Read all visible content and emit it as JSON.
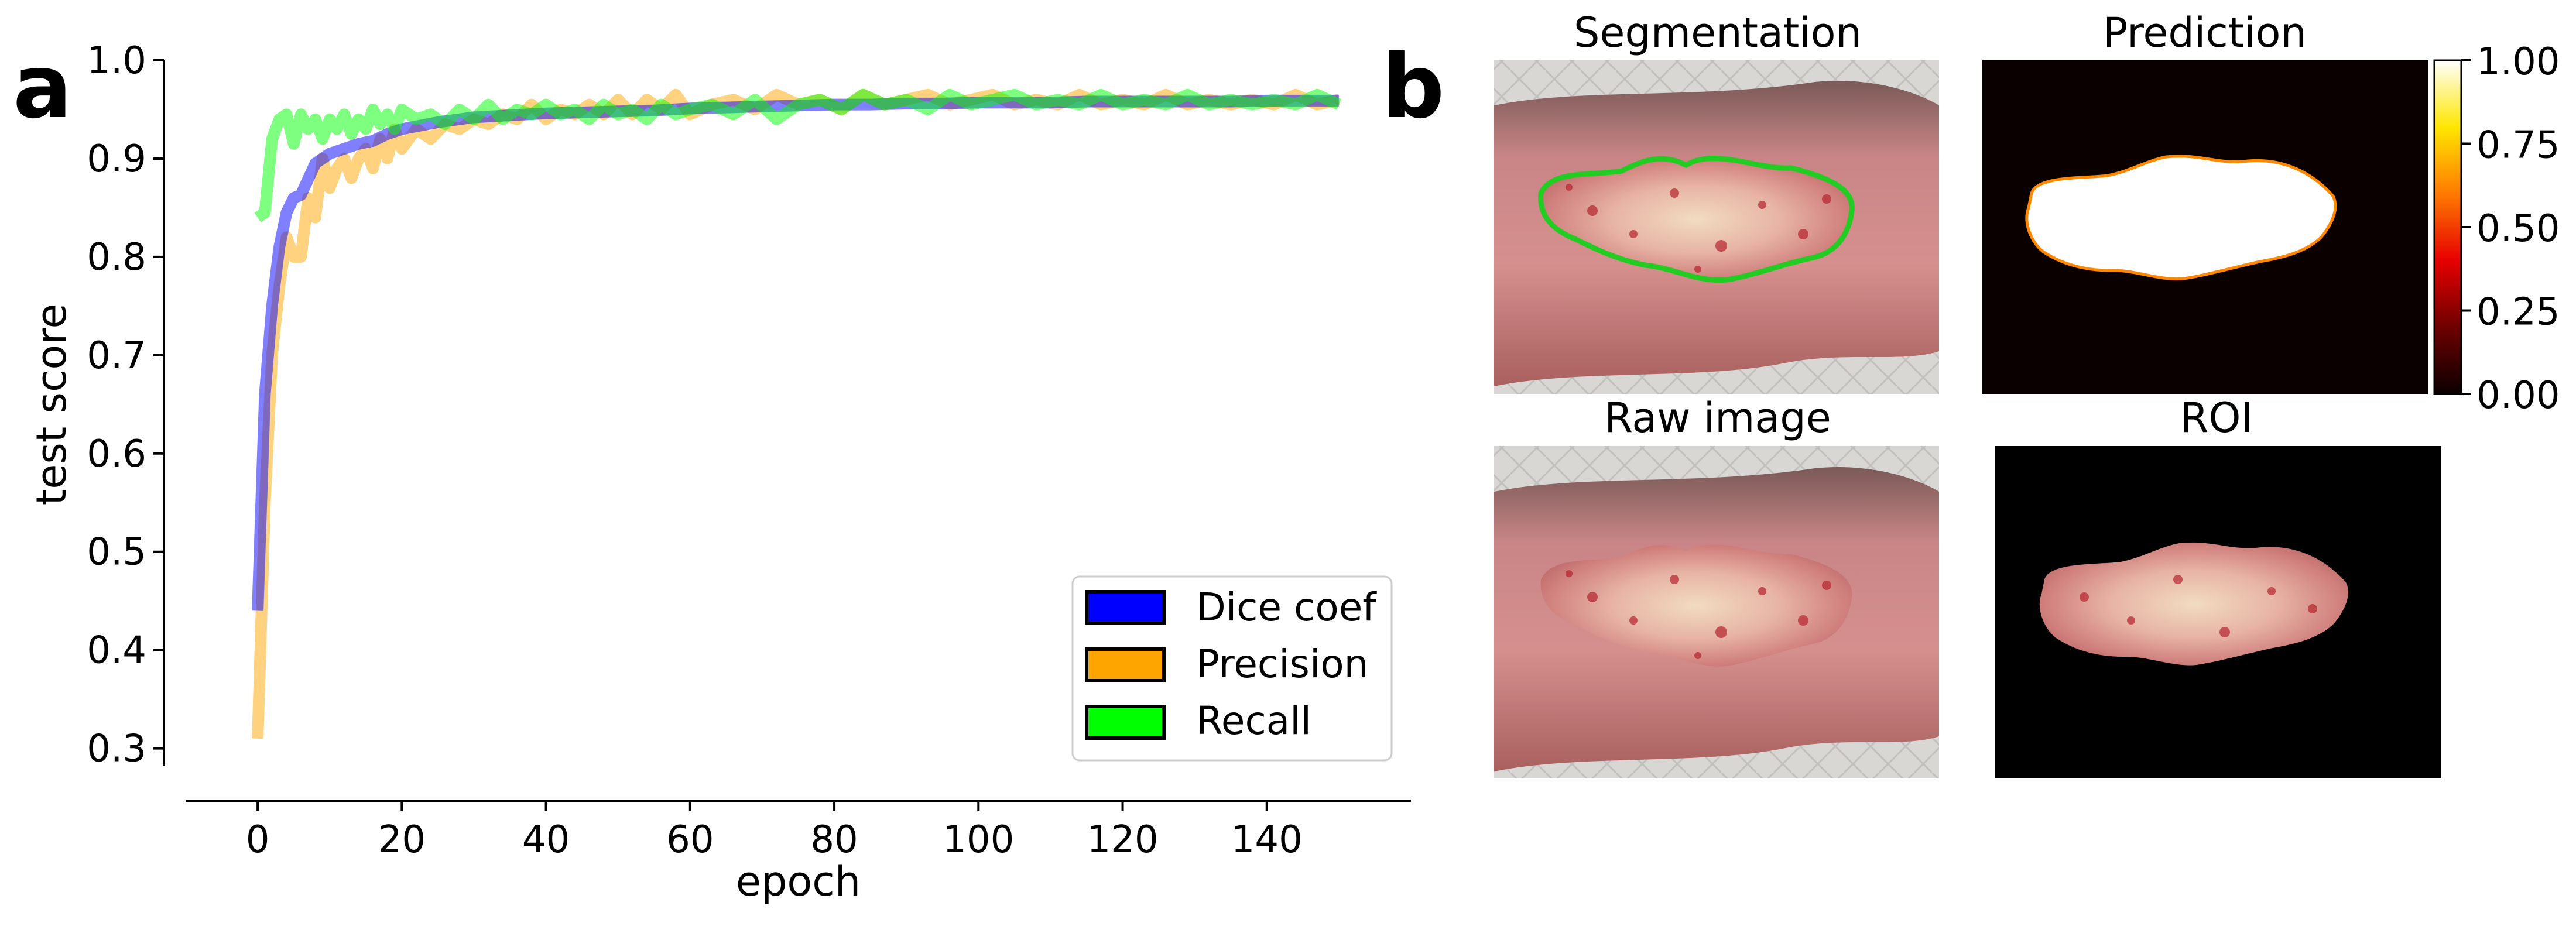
{
  "panels": {
    "a": "a",
    "b": "b"
  },
  "chart_data": {
    "type": "line",
    "title": "",
    "xlabel": "epoch",
    "ylabel": "test score",
    "xlim": [
      -10,
      160
    ],
    "ylim": [
      0.27,
      1.0
    ],
    "xticks": [
      0,
      20,
      40,
      60,
      80,
      100,
      120,
      140
    ],
    "yticks": [
      0.3,
      0.4,
      0.5,
      0.6,
      0.7,
      0.8,
      0.9,
      1.0
    ],
    "grid": false,
    "legend_position": "lower-right",
    "series": [
      {
        "name": "Dice coef",
        "color": "#0000ff",
        "x": [
          0,
          1,
          2,
          3,
          4,
          5,
          6,
          8,
          10,
          12,
          14,
          16,
          18,
          20,
          25,
          30,
          35,
          40,
          45,
          50,
          55,
          60,
          65,
          70,
          75,
          80,
          85,
          90,
          95,
          100,
          105,
          110,
          115,
          120,
          125,
          130,
          135,
          140,
          145,
          150
        ],
        "y": [
          0.44,
          0.66,
          0.75,
          0.81,
          0.845,
          0.86,
          0.863,
          0.895,
          0.905,
          0.91,
          0.915,
          0.918,
          0.925,
          0.93,
          0.937,
          0.942,
          0.944,
          0.946,
          0.947,
          0.948,
          0.949,
          0.951,
          0.952,
          0.953,
          0.954,
          0.955,
          0.955,
          0.956,
          0.956,
          0.957,
          0.957,
          0.957,
          0.958,
          0.958,
          0.958,
          0.958,
          0.958,
          0.959,
          0.959,
          0.959
        ]
      },
      {
        "name": "Precision",
        "color": "#ffa500",
        "x": [
          0,
          1,
          2,
          3,
          4,
          5,
          6,
          7,
          8,
          9,
          10,
          11,
          12,
          13,
          14,
          15,
          16,
          17,
          18,
          19,
          20,
          22,
          24,
          26,
          28,
          30,
          32,
          34,
          36,
          38,
          40,
          42,
          44,
          46,
          48,
          50,
          52,
          54,
          56,
          58,
          60,
          63,
          66,
          69,
          72,
          75,
          78,
          81,
          84,
          87,
          90,
          93,
          96,
          99,
          102,
          105,
          108,
          111,
          114,
          117,
          120,
          123,
          126,
          129,
          132,
          135,
          138,
          141,
          144,
          147,
          150
        ],
        "y": [
          0.31,
          0.55,
          0.7,
          0.77,
          0.82,
          0.8,
          0.8,
          0.86,
          0.84,
          0.9,
          0.87,
          0.89,
          0.9,
          0.88,
          0.9,
          0.91,
          0.89,
          0.92,
          0.9,
          0.93,
          0.91,
          0.93,
          0.92,
          0.935,
          0.93,
          0.94,
          0.935,
          0.945,
          0.94,
          0.955,
          0.94,
          0.95,
          0.945,
          0.955,
          0.945,
          0.96,
          0.945,
          0.96,
          0.95,
          0.965,
          0.945,
          0.955,
          0.96,
          0.95,
          0.965,
          0.955,
          0.96,
          0.95,
          0.965,
          0.955,
          0.96,
          0.965,
          0.955,
          0.96,
          0.965,
          0.955,
          0.96,
          0.955,
          0.965,
          0.955,
          0.96,
          0.955,
          0.965,
          0.955,
          0.96,
          0.955,
          0.96,
          0.955,
          0.965,
          0.955,
          0.96
        ]
      },
      {
        "name": "Recall",
        "color": "#00ff00",
        "x": [
          0,
          1,
          2,
          3,
          4,
          5,
          6,
          7,
          8,
          9,
          10,
          11,
          12,
          13,
          14,
          15,
          16,
          17,
          18,
          19,
          20,
          22,
          24,
          26,
          28,
          30,
          32,
          34,
          36,
          38,
          40,
          42,
          44,
          46,
          48,
          50,
          52,
          54,
          56,
          58,
          60,
          63,
          66,
          69,
          72,
          75,
          78,
          81,
          84,
          87,
          90,
          93,
          96,
          99,
          102,
          105,
          108,
          111,
          114,
          117,
          120,
          123,
          126,
          129,
          132,
          135,
          138,
          141,
          144,
          147,
          150
        ],
        "y": [
          0.84,
          0.845,
          0.92,
          0.94,
          0.945,
          0.915,
          0.945,
          0.93,
          0.94,
          0.92,
          0.94,
          0.93,
          0.945,
          0.925,
          0.94,
          0.93,
          0.95,
          0.935,
          0.945,
          0.93,
          0.95,
          0.94,
          0.945,
          0.935,
          0.95,
          0.94,
          0.955,
          0.94,
          0.95,
          0.945,
          0.955,
          0.945,
          0.95,
          0.94,
          0.955,
          0.945,
          0.95,
          0.94,
          0.955,
          0.945,
          0.95,
          0.955,
          0.945,
          0.96,
          0.94,
          0.955,
          0.96,
          0.95,
          0.965,
          0.955,
          0.96,
          0.95,
          0.965,
          0.955,
          0.96,
          0.965,
          0.955,
          0.96,
          0.955,
          0.965,
          0.955,
          0.96,
          0.955,
          0.965,
          0.955,
          0.96,
          0.955,
          0.96,
          0.955,
          0.965,
          0.955
        ]
      }
    ]
  },
  "images": {
    "segmentation": {
      "title": "Segmentation",
      "contour_color": "#22cc22"
    },
    "prediction": {
      "title": "Prediction"
    },
    "raw": {
      "title": "Raw image"
    },
    "roi": {
      "title": "ROI"
    }
  },
  "colorbar": {
    "ticks": [
      "1.00",
      "0.75",
      "0.50",
      "0.25",
      "0.00"
    ],
    "colormap": "hot"
  }
}
